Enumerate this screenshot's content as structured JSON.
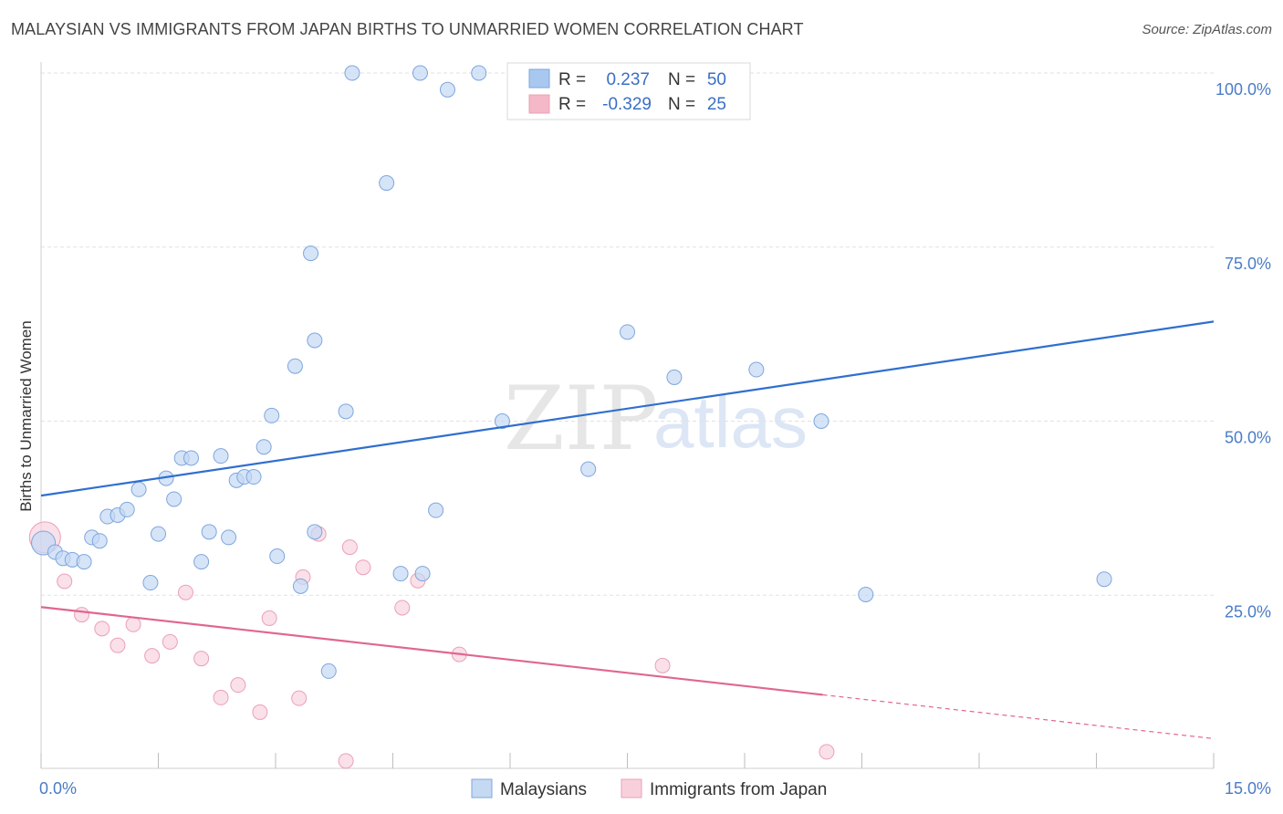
{
  "title": "MALAYSIAN VS IMMIGRANTS FROM JAPAN BIRTHS TO UNMARRIED WOMEN CORRELATION CHART",
  "source": "Source: ZipAtlas.com",
  "watermark": {
    "zip": "ZIP",
    "atlas": "atlas"
  },
  "legend": {
    "r_label": "R =",
    "n_label": "N =",
    "rows": [
      {
        "r": "0.237",
        "n": "50",
        "color": "#a9c8f0"
      },
      {
        "r": "-0.329",
        "n": "25",
        "color": "#f5b8c8"
      }
    ]
  },
  "colors": {
    "blue_point_fill": "#c5d9f3",
    "blue_point_stroke": "#7ea6de",
    "blue_line": "#2f6fcf",
    "pink_point_fill": "#f8d0dc",
    "pink_point_stroke": "#eba0b6",
    "pink_line": "#e06690",
    "grid": "#e2e2e2",
    "tick_label": "#4a7cc7"
  },
  "chart_data": {
    "type": "scatter",
    "title": "MALAYSIAN VS IMMIGRANTS FROM JAPAN BIRTHS TO UNMARRIED WOMEN CORRELATION CHART",
    "xlabel": "",
    "ylabel": "Births to Unmarried Women",
    "xlim": [
      0,
      15
    ],
    "ylim": [
      0,
      102
    ],
    "x_tick_labels": [
      "0.0%",
      "15.0%"
    ],
    "y_ticks": [
      25,
      50,
      75,
      100
    ],
    "y_tick_labels": [
      "25.0%",
      "50.0%",
      "75.0%",
      "100.0%"
    ],
    "grid": true,
    "legend_position": "top-center",
    "series": [
      {
        "name": "Malaysians",
        "r": 0.237,
        "n": 50,
        "trend": {
          "x": [
            0,
            15
          ],
          "y": [
            39.3,
            64.3
          ]
        },
        "points": [
          {
            "x": 0.03,
            "y": 32.5,
            "big": true
          },
          {
            "x": 0.18,
            "y": 31.2
          },
          {
            "x": 0.28,
            "y": 30.3
          },
          {
            "x": 0.4,
            "y": 30.1
          },
          {
            "x": 0.55,
            "y": 29.8
          },
          {
            "x": 0.65,
            "y": 33.3
          },
          {
            "x": 0.75,
            "y": 32.8
          },
          {
            "x": 0.85,
            "y": 36.3
          },
          {
            "x": 0.98,
            "y": 36.5
          },
          {
            "x": 1.1,
            "y": 37.3
          },
          {
            "x": 1.25,
            "y": 40.2
          },
          {
            "x": 1.4,
            "y": 26.8
          },
          {
            "x": 1.5,
            "y": 33.8
          },
          {
            "x": 1.6,
            "y": 41.8
          },
          {
            "x": 1.7,
            "y": 38.8
          },
          {
            "x": 1.8,
            "y": 44.7
          },
          {
            "x": 1.92,
            "y": 44.7
          },
          {
            "x": 2.05,
            "y": 29.8
          },
          {
            "x": 2.15,
            "y": 34.1
          },
          {
            "x": 2.3,
            "y": 45.0
          },
          {
            "x": 2.4,
            "y": 33.3
          },
          {
            "x": 2.5,
            "y": 41.5
          },
          {
            "x": 2.6,
            "y": 42.0
          },
          {
            "x": 2.72,
            "y": 42.0
          },
          {
            "x": 2.85,
            "y": 46.3
          },
          {
            "x": 2.95,
            "y": 50.8
          },
          {
            "x": 3.02,
            "y": 30.6
          },
          {
            "x": 3.25,
            "y": 57.9
          },
          {
            "x": 3.32,
            "y": 26.3
          },
          {
            "x": 3.45,
            "y": 74.1
          },
          {
            "x": 3.5,
            "y": 34.1
          },
          {
            "x": 3.5,
            "y": 61.6
          },
          {
            "x": 3.68,
            "y": 14.1
          },
          {
            "x": 3.9,
            "y": 51.4
          },
          {
            "x": 3.98,
            "y": 100.0
          },
          {
            "x": 4.42,
            "y": 84.2
          },
          {
            "x": 4.6,
            "y": 28.1
          },
          {
            "x": 4.85,
            "y": 100.0
          },
          {
            "x": 4.88,
            "y": 28.1
          },
          {
            "x": 5.05,
            "y": 37.2
          },
          {
            "x": 5.2,
            "y": 97.6
          },
          {
            "x": 5.6,
            "y": 100.0
          },
          {
            "x": 5.9,
            "y": 50.0
          },
          {
            "x": 7.0,
            "y": 43.1
          },
          {
            "x": 7.5,
            "y": 62.8
          },
          {
            "x": 8.1,
            "y": 56.3
          },
          {
            "x": 9.15,
            "y": 57.4
          },
          {
            "x": 9.98,
            "y": 50.0
          },
          {
            "x": 10.55,
            "y": 25.1
          },
          {
            "x": 13.6,
            "y": 27.3
          }
        ]
      },
      {
        "name": "Immigrants from Japan",
        "r": -0.329,
        "n": 25,
        "trend": {
          "x": [
            0,
            10.0,
            15
          ],
          "y": [
            23.3,
            10.7,
            4.4
          ],
          "dashed_from": 10.0
        },
        "points": [
          {
            "x": 0.05,
            "y": 33.3,
            "big": true
          },
          {
            "x": 0.3,
            "y": 27.0
          },
          {
            "x": 0.52,
            "y": 22.2
          },
          {
            "x": 0.78,
            "y": 20.2
          },
          {
            "x": 0.98,
            "y": 17.8
          },
          {
            "x": 1.18,
            "y": 20.8
          },
          {
            "x": 1.42,
            "y": 16.3
          },
          {
            "x": 1.65,
            "y": 18.3
          },
          {
            "x": 1.85,
            "y": 25.4
          },
          {
            "x": 2.05,
            "y": 15.9
          },
          {
            "x": 2.3,
            "y": 10.3
          },
          {
            "x": 2.52,
            "y": 12.1
          },
          {
            "x": 2.8,
            "y": 8.2
          },
          {
            "x": 2.92,
            "y": 21.7
          },
          {
            "x": 3.3,
            "y": 10.2
          },
          {
            "x": 3.35,
            "y": 27.6
          },
          {
            "x": 3.55,
            "y": 33.8
          },
          {
            "x": 3.9,
            "y": 1.2
          },
          {
            "x": 3.95,
            "y": 31.9
          },
          {
            "x": 4.12,
            "y": 29.0
          },
          {
            "x": 4.62,
            "y": 23.2
          },
          {
            "x": 4.82,
            "y": 27.1
          },
          {
            "x": 5.35,
            "y": 16.5
          },
          {
            "x": 7.95,
            "y": 14.9
          },
          {
            "x": 10.05,
            "y": 2.5
          }
        ]
      }
    ]
  }
}
